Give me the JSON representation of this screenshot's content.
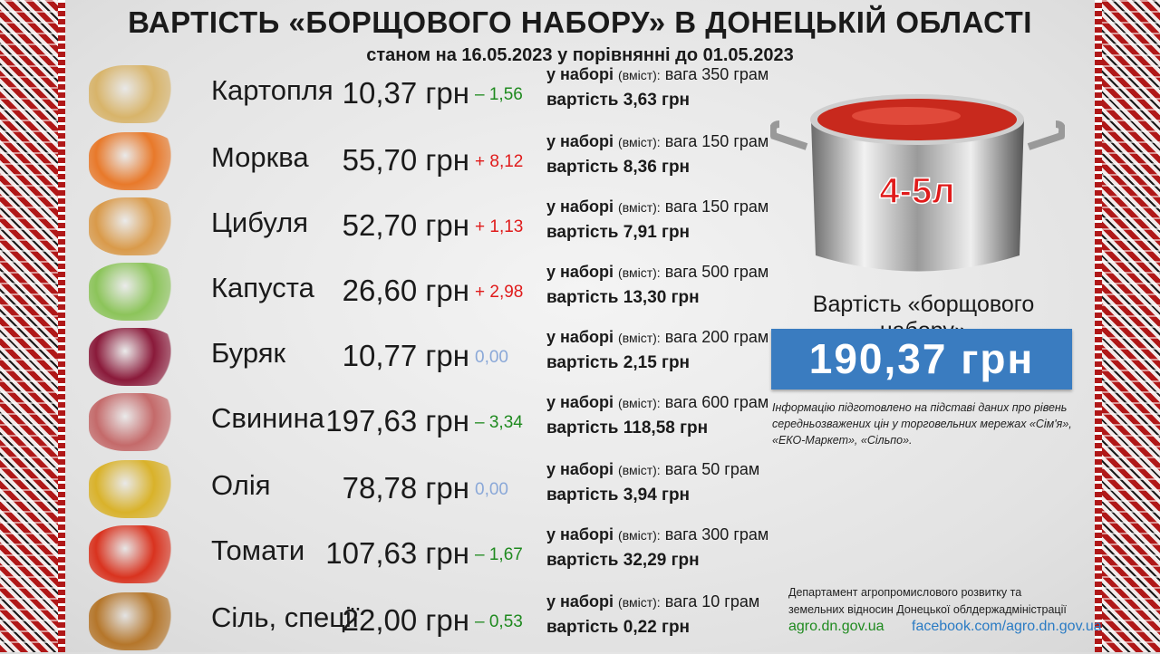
{
  "title": "ВАРТІСТЬ «БОРЩОВОГО НАБОРУ» В ДОНЕЦЬКІЙ ОБЛАСТІ",
  "subtitle": "станом на 16.05.2023 у порівнянні до 01.05.2023",
  "colors": {
    "increase": "#e01b1b",
    "decrease": "#1f8a1f",
    "nochange": "#8aa8d8",
    "total_box": "#3a7cc0"
  },
  "detail_labels": {
    "in_set": "у наборі",
    "content": "(вміст):",
    "weight": "вага",
    "cost": "вартість"
  },
  "items": [
    {
      "name": "Картопля",
      "price": "10,37 грн",
      "change": "– 1,56",
      "dir": "down",
      "weight": "350 грам",
      "cost": "3,63 грн",
      "icon": "potato-icon",
      "color": "#d8b46a"
    },
    {
      "name": "Морква",
      "price": "55,70 грн",
      "change": "+ 8,12",
      "dir": "up",
      "weight": "150 грам",
      "cost": "8,36 грн",
      "icon": "carrot-icon",
      "color": "#e8792a"
    },
    {
      "name": "Цибуля",
      "price": "52,70 грн",
      "change": "+ 1,13",
      "dir": "up",
      "weight": "150 грам",
      "cost": "7,91 грн",
      "icon": "onion-icon",
      "color": "#d99a4a"
    },
    {
      "name": "Капуста",
      "price": "26,60 грн",
      "change": "+ 2,98",
      "dir": "up",
      "weight": "500 грам",
      "cost": "13,30 грн",
      "icon": "cabbage-icon",
      "color": "#8cc45a"
    },
    {
      "name": "Буряк",
      "price": "10,77 грн",
      "change": "0,00",
      "dir": "none",
      "weight": "200 грам",
      "cost": "2,15 грн",
      "icon": "beet-icon",
      "color": "#8a1a3a"
    },
    {
      "name": "Свинина",
      "price": "197,63 грн",
      "change": "– 3,34",
      "dir": "down",
      "weight": "600 грам",
      "cost": "118,58 грн",
      "icon": "pork-icon",
      "color": "#c46a6a"
    },
    {
      "name": "Олія",
      "price": "78,78 грн",
      "change": "0,00",
      "dir": "none",
      "weight": "50 грам",
      "cost": "3,94 грн",
      "icon": "oil-icon",
      "color": "#d9b22a"
    },
    {
      "name": "Томати",
      "price": "107,63 грн",
      "change": "– 1,67",
      "dir": "down",
      "weight": "300 грам",
      "cost": "32,29 грн",
      "icon": "tomato-icon",
      "color": "#d9331f"
    },
    {
      "name": "Сіль, спеції",
      "price": "22,00 грн",
      "change": "– 0,53",
      "dir": "down",
      "weight": "10 грам",
      "cost": "0,22 грн",
      "icon": "spices-icon",
      "color": "#b5762a"
    }
  ],
  "pot": {
    "volume": "4-5л"
  },
  "total": {
    "label": "Вартість «борщового набору»",
    "value": "190,37 грн"
  },
  "note": "Інформацію підготовлено на підставі даних про рівень середньозважених цін у торговельних мережах «Сім'я», «ЕКО-Маркет», «Сільпо».",
  "footer": {
    "dept_line1": "Департамент агропромислового розвитку та",
    "dept_line2": "земельних відносин Донецької облдержадміністрації",
    "site": "agro.dn.gov.ua",
    "facebook": "facebook.com/agro.dn.gov.ua"
  }
}
